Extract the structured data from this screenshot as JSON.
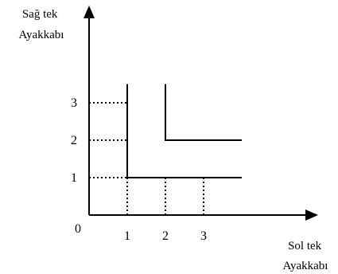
{
  "chart_data": {
    "type": "line",
    "title": "",
    "ylabel_lines": [
      "Sağ tek",
      "Ayakkabı"
    ],
    "xlabel_lines": [
      "Sol tek",
      "Ayakkabı"
    ],
    "origin_label": "0",
    "x_ticks": [
      "1",
      "2",
      "3"
    ],
    "y_ticks": [
      "1",
      "2",
      "3"
    ],
    "xlim": [
      0,
      4.8
    ],
    "ylim": [
      0,
      4.4
    ],
    "grid": false,
    "series": [
      {
        "x": [
          1,
          1,
          4
        ],
        "y": [
          3.5,
          1,
          1
        ]
      },
      {
        "x": [
          2,
          2,
          4
        ],
        "y": [
          3.5,
          2,
          2
        ]
      }
    ],
    "guides": {
      "horizontal": [
        {
          "y": 3,
          "x_to": 1
        },
        {
          "y": 2,
          "x_to": 1
        },
        {
          "y": 1,
          "x_to": 1
        }
      ],
      "vertical": [
        {
          "x": 1,
          "y_to": 1
        },
        {
          "x": 2,
          "y_to": 1
        },
        {
          "x": 3,
          "y_to": 1
        }
      ]
    }
  }
}
